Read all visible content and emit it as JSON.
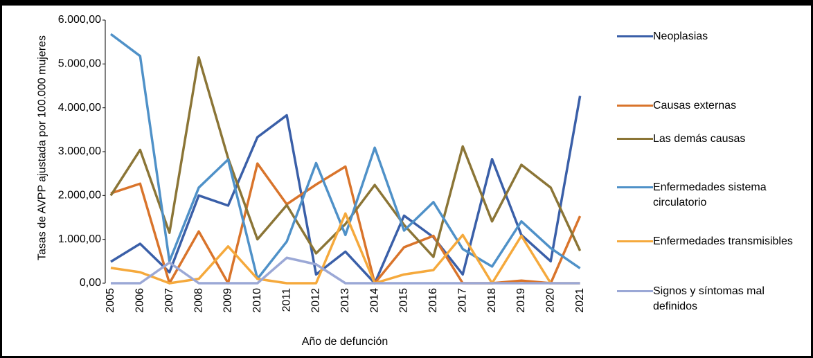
{
  "chart_data": {
    "type": "line",
    "y_label": "Tasas de AVPP ajustada por 100.000 mujeres",
    "x_label": "Año de defunción",
    "categories": [
      "2005",
      "2006",
      "2007",
      "2008",
      "2009",
      "2010",
      "2011",
      "2012",
      "2013",
      "2014",
      "2015",
      "2016",
      "2017",
      "2018",
      "2019",
      "2020",
      "2021"
    ],
    "ylim": [
      0,
      6000
    ],
    "yticks": [
      {
        "value": 0,
        "label": "0,00"
      },
      {
        "value": 1000,
        "label": "1.000,00"
      },
      {
        "value": 2000,
        "label": "2.000,00"
      },
      {
        "value": 3000,
        "label": "3.000,00"
      },
      {
        "value": 4000,
        "label": "4.000,00"
      },
      {
        "value": 5000,
        "label": "5.000,00"
      },
      {
        "value": 6000,
        "label": "6.000,00"
      }
    ],
    "legend": "right",
    "series": [
      {
        "name": "Neoplasias",
        "color": "#3a5fa8",
        "values": [
          490,
          900,
          250,
          2000,
          1770,
          3330,
          3830,
          200,
          720,
          0,
          1540,
          1050,
          200,
          2830,
          1100,
          500,
          4270
        ]
      },
      {
        "name": "Causas externas",
        "color": "#d9742b",
        "values": [
          2050,
          2270,
          0,
          1180,
          0,
          2730,
          1800,
          2250,
          2660,
          0,
          820,
          1080,
          0,
          0,
          60,
          0,
          1530
        ]
      },
      {
        "name": "Las demás causas",
        "color": "#8b7536",
        "values": [
          2000,
          3040,
          1150,
          5150,
          2850,
          1000,
          1780,
          680,
          1350,
          2240,
          1330,
          600,
          3120,
          1410,
          2700,
          2180,
          740
        ]
      },
      {
        "name": "Enfermedades sistema circulatorio",
        "color": "#4f91c8",
        "values": [
          5680,
          5180,
          500,
          2180,
          2820,
          100,
          950,
          2740,
          1100,
          3090,
          1200,
          1850,
          780,
          380,
          1410,
          800,
          340
        ]
      },
      {
        "name": "Enfermedades transmisibles",
        "color": "#f5a93c",
        "values": [
          350,
          250,
          0,
          100,
          840,
          100,
          0,
          0,
          1590,
          0,
          200,
          300,
          1100,
          0,
          1080,
          0,
          0
        ]
      },
      {
        "name": "Signos y síntomas mal definidos",
        "color": "#9ba8d6",
        "values": [
          0,
          0,
          470,
          0,
          0,
          0,
          580,
          430,
          0,
          0,
          0,
          0,
          0,
          0,
          0,
          0,
          0
        ]
      }
    ]
  }
}
